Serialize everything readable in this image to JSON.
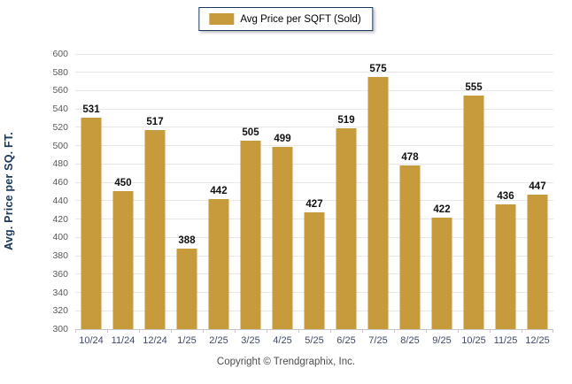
{
  "legend": {
    "label": "Avg Price per SQFT (Sold)"
  },
  "footer": {
    "copyright": "Copyright © Trendgraphix, Inc."
  },
  "colors": {
    "bar": "#C79A3C",
    "grid": "#E8E8E8",
    "axis": "#C6C6C6",
    "tick_mark": "#C6C6C6",
    "value_label": "#111111",
    "x_tick_label": "#3E4A66",
    "y_tick_label": "#595959",
    "axis_title": "#17375E",
    "legend_border": "#17375E"
  },
  "chart_data": {
    "type": "bar",
    "title": "",
    "xlabel": "",
    "ylabel": "Avg. Price per SQ. FT.",
    "categories": [
      "10/24",
      "11/24",
      "12/24",
      "1/25",
      "2/25",
      "3/25",
      "4/25",
      "5/25",
      "6/25",
      "7/25",
      "8/25",
      "9/25",
      "10/25",
      "11/25",
      "12/25"
    ],
    "values": [
      531,
      450,
      517,
      388,
      442,
      505,
      499,
      427,
      519,
      575,
      478,
      422,
      555,
      436,
      447
    ],
    "series_name": "Avg Price per SQFT (Sold)",
    "ylim": [
      300,
      600
    ],
    "ytick_step": 20,
    "grid": true,
    "value_labels": true,
    "legend_position": "top-center"
  }
}
